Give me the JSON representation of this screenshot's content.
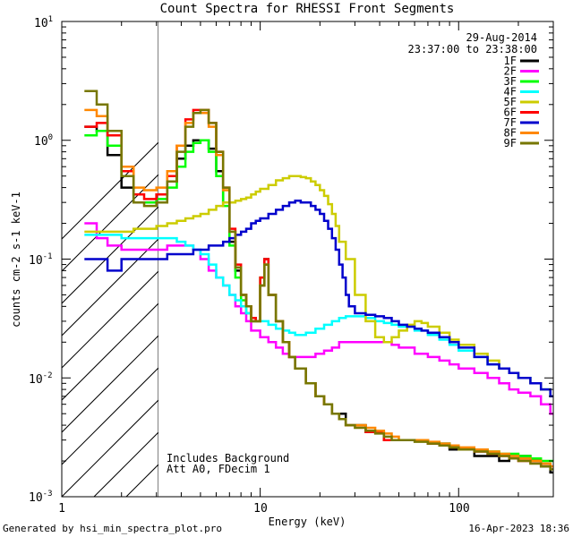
{
  "chart_data": {
    "type": "line",
    "title": "Count Spectra for RHESSI Front Segments",
    "xlabel": "Energy (keV)",
    "ylabel": "counts cm-2 s-1 keV-1",
    "xscale": "log",
    "yscale": "log",
    "xlim": [
      1,
      300
    ],
    "ylim": [
      0.001,
      10
    ],
    "x_tick_labels": [
      "1",
      "10",
      "100"
    ],
    "y_tick_labels": [
      "10",
      "10",
      "10",
      "10",
      "10"
    ],
    "y_tick_exponents": [
      "1",
      "0",
      "-1",
      "-2",
      "-3"
    ],
    "date": "29-Aug-2014",
    "time_range": "23:37:00 to 23:38:00",
    "annotations": [
      "Includes Background",
      "Att A0, FDecim 1"
    ],
    "footer_left": "Generated by hsi_min_spectra_plot.pro",
    "footer_right": "16-Apr-2023 18:36",
    "shaded_region": {
      "xmin": 1,
      "xmax": 3
    },
    "legend_position": "top-right",
    "series": [
      {
        "name": "1F",
        "color": "#000000",
        "x": [
          1.3,
          1.5,
          1.7,
          2.0,
          2.3,
          2.6,
          3.0,
          3.4,
          3.8,
          4.2,
          4.6,
          5.0,
          5.5,
          6.0,
          6.5,
          7.0,
          7.5,
          8.0,
          8.5,
          9.0,
          9.5,
          10,
          10.5,
          11,
          12,
          13,
          14,
          15,
          17,
          19,
          21,
          23,
          25,
          27,
          30,
          34,
          38,
          42,
          46,
          50,
          60,
          70,
          80,
          90,
          100,
          120,
          140,
          160,
          180,
          200,
          230,
          260,
          290
        ],
        "y": [
          1.3,
          1.2,
          0.75,
          0.4,
          0.3,
          0.3,
          0.35,
          0.45,
          0.7,
          0.9,
          1.0,
          1.0,
          0.85,
          0.55,
          0.3,
          0.14,
          0.08,
          0.05,
          0.04,
          0.03,
          0.03,
          0.06,
          0.1,
          0.05,
          0.03,
          0.02,
          0.015,
          0.012,
          0.009,
          0.007,
          0.006,
          0.005,
          0.005,
          0.004,
          0.004,
          0.0035,
          0.0035,
          0.003,
          0.003,
          0.003,
          0.003,
          0.0028,
          0.0028,
          0.0025,
          0.0025,
          0.0022,
          0.0022,
          0.002,
          0.0022,
          0.0022,
          0.002,
          0.0018,
          0.0016
        ]
      },
      {
        "name": "2F",
        "color": "#ff00ff",
        "x": [
          1.3,
          1.5,
          1.7,
          2.0,
          2.3,
          2.6,
          3.0,
          3.4,
          3.8,
          4.2,
          4.6,
          5.0,
          5.5,
          6.0,
          6.5,
          7.0,
          7.5,
          8.0,
          8.5,
          9.0,
          9.5,
          10,
          11,
          12,
          13,
          14,
          15,
          17,
          19,
          21,
          23,
          25,
          27,
          30,
          34,
          38,
          42,
          46,
          50,
          60,
          70,
          80,
          90,
          100,
          120,
          140,
          160,
          180,
          200,
          230,
          260,
          290
        ],
        "y": [
          0.2,
          0.15,
          0.13,
          0.12,
          0.12,
          0.12,
          0.12,
          0.13,
          0.13,
          0.13,
          0.12,
          0.1,
          0.08,
          0.07,
          0.06,
          0.05,
          0.04,
          0.035,
          0.03,
          0.025,
          0.025,
          0.022,
          0.02,
          0.018,
          0.016,
          0.015,
          0.015,
          0.015,
          0.016,
          0.017,
          0.018,
          0.02,
          0.02,
          0.02,
          0.02,
          0.02,
          0.02,
          0.019,
          0.018,
          0.016,
          0.015,
          0.014,
          0.013,
          0.012,
          0.011,
          0.01,
          0.009,
          0.008,
          0.0075,
          0.007,
          0.006,
          0.005
        ]
      },
      {
        "name": "3F",
        "color": "#00ff00",
        "x": [
          1.3,
          1.5,
          1.7,
          2.0,
          2.3,
          2.6,
          3.0,
          3.4,
          3.8,
          4.2,
          4.6,
          5.0,
          5.5,
          6.0,
          6.5,
          7.0,
          7.5,
          8.0,
          8.5,
          9.0,
          9.5,
          10,
          10.5,
          11,
          12,
          13,
          14,
          15,
          17,
          19,
          21,
          23,
          25,
          27,
          30,
          34,
          38,
          42,
          46,
          50,
          60,
          70,
          80,
          90,
          100,
          120,
          140,
          160,
          180,
          200,
          230,
          260,
          290
        ],
        "y": [
          1.1,
          1.2,
          0.9,
          0.5,
          0.3,
          0.3,
          0.32,
          0.4,
          0.6,
          0.8,
          0.95,
          1.0,
          0.8,
          0.5,
          0.28,
          0.13,
          0.07,
          0.045,
          0.035,
          0.03,
          0.03,
          0.07,
          0.09,
          0.05,
          0.03,
          0.02,
          0.015,
          0.012,
          0.009,
          0.007,
          0.006,
          0.005,
          0.0045,
          0.004,
          0.004,
          0.0035,
          0.0035,
          0.003,
          0.003,
          0.003,
          0.003,
          0.0028,
          0.0028,
          0.0026,
          0.0025,
          0.0025,
          0.0024,
          0.0023,
          0.0023,
          0.0022,
          0.0021,
          0.002,
          0.002
        ]
      },
      {
        "name": "4F",
        "color": "#00ffff",
        "x": [
          1.3,
          1.5,
          1.7,
          2.0,
          2.3,
          2.6,
          3.0,
          3.4,
          3.8,
          4.2,
          4.6,
          5.0,
          5.5,
          6.0,
          6.5,
          7.0,
          7.5,
          8.0,
          8.5,
          9.0,
          9.5,
          10,
          11,
          12,
          13,
          14,
          15,
          17,
          19,
          21,
          23,
          25,
          27,
          30,
          34,
          38,
          42,
          46,
          50,
          60,
          70,
          80,
          90,
          100,
          120,
          140,
          160,
          180,
          200,
          230,
          260,
          290
        ],
        "y": [
          0.16,
          0.16,
          0.16,
          0.15,
          0.15,
          0.15,
          0.15,
          0.15,
          0.14,
          0.13,
          0.12,
          0.11,
          0.09,
          0.07,
          0.06,
          0.05,
          0.045,
          0.04,
          0.035,
          0.032,
          0.03,
          0.03,
          0.028,
          0.026,
          0.025,
          0.024,
          0.023,
          0.024,
          0.026,
          0.028,
          0.03,
          0.032,
          0.033,
          0.033,
          0.032,
          0.03,
          0.029,
          0.028,
          0.027,
          0.025,
          0.023,
          0.021,
          0.019,
          0.017,
          0.015,
          0.013,
          0.012,
          0.011,
          0.01,
          0.009,
          0.008,
          0.007
        ]
      },
      {
        "name": "5F",
        "color": "#cccc00",
        "x": [
          1.3,
          1.5,
          1.7,
          2.0,
          2.3,
          2.6,
          3.0,
          3.4,
          3.8,
          4.2,
          4.6,
          5.0,
          5.5,
          6.0,
          6.5,
          7.0,
          7.5,
          8.0,
          8.5,
          9.0,
          9.5,
          10,
          11,
          12,
          13,
          14,
          15,
          16,
          17,
          18,
          19,
          20,
          21,
          22,
          23,
          24,
          25,
          27,
          30,
          34,
          38,
          42,
          46,
          50,
          55,
          60,
          65,
          70,
          80,
          90,
          100,
          120,
          140,
          160,
          180,
          200,
          230,
          260,
          290
        ],
        "y": [
          0.17,
          0.17,
          0.17,
          0.17,
          0.18,
          0.18,
          0.19,
          0.2,
          0.21,
          0.22,
          0.23,
          0.24,
          0.26,
          0.28,
          0.3,
          0.3,
          0.31,
          0.32,
          0.33,
          0.35,
          0.37,
          0.39,
          0.42,
          0.46,
          0.48,
          0.5,
          0.5,
          0.49,
          0.48,
          0.45,
          0.42,
          0.38,
          0.34,
          0.29,
          0.24,
          0.19,
          0.14,
          0.1,
          0.05,
          0.03,
          0.022,
          0.02,
          0.022,
          0.025,
          0.028,
          0.03,
          0.029,
          0.027,
          0.024,
          0.021,
          0.019,
          0.016,
          0.014,
          0.012,
          0.011,
          0.01,
          0.009,
          0.008,
          0.007
        ]
      },
      {
        "name": "6F",
        "color": "#ff0000",
        "x": [
          1.3,
          1.5,
          1.7,
          2.0,
          2.3,
          2.6,
          3.0,
          3.4,
          3.8,
          4.2,
          4.6,
          5.0,
          5.5,
          6.0,
          6.5,
          7.0,
          7.5,
          8.0,
          8.5,
          9.0,
          9.5,
          10,
          10.5,
          11,
          12,
          13,
          14,
          15,
          17,
          19,
          21,
          23,
          25,
          27,
          30,
          34,
          38,
          42,
          46,
          50,
          60,
          70,
          80,
          90,
          100,
          120,
          140,
          160,
          180,
          200,
          230,
          260,
          290
        ],
        "y": [
          1.3,
          1.4,
          1.1,
          0.55,
          0.35,
          0.32,
          0.35,
          0.5,
          0.9,
          1.5,
          1.8,
          1.8,
          1.4,
          0.8,
          0.4,
          0.18,
          0.09,
          0.05,
          0.04,
          0.032,
          0.03,
          0.07,
          0.1,
          0.05,
          0.03,
          0.02,
          0.015,
          0.012,
          0.009,
          0.007,
          0.006,
          0.005,
          0.0045,
          0.004,
          0.004,
          0.0035,
          0.0035,
          0.003,
          0.003,
          0.003,
          0.003,
          0.0028,
          0.0027,
          0.0026,
          0.0025,
          0.0024,
          0.0023,
          0.0022,
          0.0021,
          0.002,
          0.002,
          0.0019,
          0.0018
        ]
      },
      {
        "name": "7F",
        "color": "#0000cc",
        "x": [
          1.3,
          1.5,
          1.7,
          2.0,
          2.3,
          2.6,
          3.0,
          3.4,
          3.8,
          4.2,
          4.6,
          5.0,
          5.5,
          6.0,
          6.5,
          7.0,
          7.5,
          8.0,
          8.5,
          9.0,
          9.5,
          10,
          11,
          12,
          13,
          14,
          15,
          16,
          17,
          18,
          19,
          20,
          21,
          22,
          23,
          24,
          25,
          26,
          27,
          28,
          30,
          32,
          34,
          38,
          42,
          46,
          50,
          55,
          60,
          65,
          70,
          80,
          90,
          100,
          120,
          140,
          160,
          180,
          200,
          230,
          260,
          290
        ],
        "y": [
          0.1,
          0.1,
          0.08,
          0.1,
          0.1,
          0.1,
          0.1,
          0.11,
          0.11,
          0.11,
          0.12,
          0.12,
          0.13,
          0.13,
          0.14,
          0.15,
          0.16,
          0.17,
          0.18,
          0.2,
          0.21,
          0.22,
          0.24,
          0.26,
          0.28,
          0.3,
          0.31,
          0.3,
          0.3,
          0.28,
          0.26,
          0.24,
          0.21,
          0.18,
          0.15,
          0.12,
          0.09,
          0.07,
          0.05,
          0.04,
          0.035,
          0.035,
          0.034,
          0.033,
          0.032,
          0.03,
          0.028,
          0.027,
          0.026,
          0.025,
          0.024,
          0.022,
          0.02,
          0.018,
          0.015,
          0.013,
          0.012,
          0.011,
          0.01,
          0.009,
          0.008,
          0.007
        ]
      },
      {
        "name": "8F",
        "color": "#ff8800",
        "x": [
          1.3,
          1.5,
          1.7,
          2.0,
          2.3,
          2.6,
          3.0,
          3.4,
          3.8,
          4.2,
          4.6,
          5.0,
          5.5,
          6.0,
          6.5,
          7.0,
          7.5,
          8.0,
          8.5,
          9.0,
          9.5,
          10,
          10.5,
          11,
          12,
          13,
          14,
          15,
          17,
          19,
          21,
          23,
          25,
          27,
          30,
          34,
          38,
          42,
          46,
          50,
          60,
          70,
          80,
          90,
          100,
          120,
          140,
          160,
          180,
          200,
          230,
          260,
          290
        ],
        "y": [
          1.8,
          1.6,
          1.2,
          0.6,
          0.4,
          0.38,
          0.4,
          0.55,
          0.9,
          1.4,
          1.7,
          1.7,
          1.3,
          0.75,
          0.38,
          0.17,
          0.085,
          0.05,
          0.04,
          0.03,
          0.03,
          0.06,
          0.09,
          0.05,
          0.03,
          0.02,
          0.015,
          0.012,
          0.009,
          0.007,
          0.006,
          0.005,
          0.0045,
          0.004,
          0.004,
          0.0038,
          0.0036,
          0.0034,
          0.0032,
          0.003,
          0.003,
          0.0029,
          0.0028,
          0.0027,
          0.0026,
          0.0025,
          0.0024,
          0.0023,
          0.0022,
          0.0021,
          0.002,
          0.0019,
          0.0018
        ]
      },
      {
        "name": "9F",
        "color": "#777700",
        "x": [
          1.3,
          1.5,
          1.7,
          2.0,
          2.3,
          2.6,
          3.0,
          3.4,
          3.8,
          4.2,
          4.6,
          5.0,
          5.5,
          6.0,
          6.5,
          7.0,
          7.5,
          8.0,
          8.5,
          9.0,
          9.5,
          10,
          10.5,
          11,
          12,
          13,
          14,
          15,
          17,
          19,
          21,
          23,
          25,
          27,
          30,
          34,
          38,
          42,
          46,
          50,
          60,
          70,
          80,
          90,
          100,
          120,
          140,
          160,
          180,
          200,
          230,
          260,
          290
        ],
        "y": [
          2.6,
          2.0,
          1.2,
          0.5,
          0.3,
          0.28,
          0.3,
          0.45,
          0.8,
          1.3,
          1.7,
          1.8,
          1.4,
          0.8,
          0.4,
          0.17,
          0.085,
          0.05,
          0.04,
          0.03,
          0.03,
          0.06,
          0.09,
          0.05,
          0.03,
          0.02,
          0.015,
          0.012,
          0.009,
          0.007,
          0.006,
          0.005,
          0.0045,
          0.004,
          0.0038,
          0.0036,
          0.0034,
          0.0032,
          0.003,
          0.003,
          0.0029,
          0.0028,
          0.0027,
          0.0026,
          0.0025,
          0.0024,
          0.0023,
          0.0022,
          0.0021,
          0.002,
          0.0019,
          0.0018,
          0.0017
        ]
      }
    ]
  }
}
